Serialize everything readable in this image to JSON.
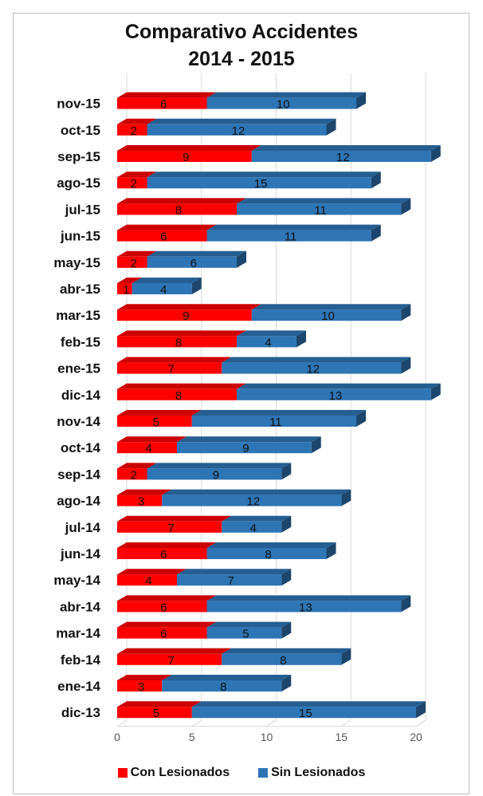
{
  "chart_data": {
    "type": "bar",
    "orientation": "horizontal",
    "stacked": true,
    "style": "3d",
    "title_line1": "Comparativo   Accidentes",
    "title_line2": "2014 - 2015",
    "categories": [
      "nov-15",
      "oct-15",
      "sep-15",
      "ago-15",
      "jul-15",
      "jun-15",
      "may-15",
      "abr-15",
      "mar-15",
      "feb-15",
      "ene-15",
      "dic-14",
      "nov-14",
      "oct-14",
      "sep-14",
      "ago-14",
      "jul-14",
      "jun-14",
      "may-14",
      "abr-14",
      "mar-14",
      "feb-14",
      "ene-14",
      "dic-13"
    ],
    "series": [
      {
        "name": "Con Lesionados",
        "color": "#ff0000",
        "values": [
          6,
          2,
          9,
          2,
          8,
          6,
          2,
          1,
          9,
          8,
          7,
          8,
          5,
          4,
          2,
          3,
          7,
          6,
          4,
          6,
          6,
          7,
          3,
          5
        ]
      },
      {
        "name": "Sin Lesionados",
        "color": "#2e75b6",
        "values": [
          10,
          12,
          12,
          15,
          11,
          11,
          6,
          4,
          10,
          4,
          12,
          13,
          11,
          9,
          9,
          12,
          4,
          8,
          7,
          13,
          5,
          8,
          8,
          15
        ]
      }
    ],
    "xlim": [
      0,
      20
    ],
    "x_ticks": [
      "0",
      "5",
      "10",
      "15",
      "20"
    ],
    "grid": true,
    "legend_position": "bottom"
  }
}
